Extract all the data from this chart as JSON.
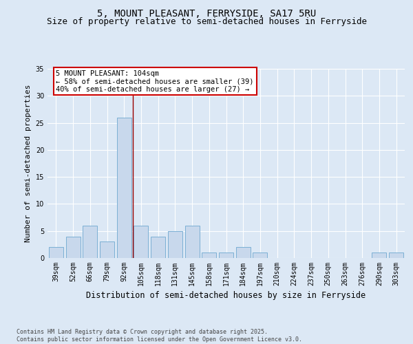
{
  "title_line1": "5, MOUNT PLEASANT, FERRYSIDE, SA17 5RU",
  "title_line2": "Size of property relative to semi-detached houses in Ferryside",
  "xlabel": "Distribution of semi-detached houses by size in Ferryside",
  "ylabel": "Number of semi-detached properties",
  "categories": [
    "39sqm",
    "52sqm",
    "66sqm",
    "79sqm",
    "92sqm",
    "105sqm",
    "118sqm",
    "131sqm",
    "145sqm",
    "158sqm",
    "171sqm",
    "184sqm",
    "197sqm",
    "210sqm",
    "224sqm",
    "237sqm",
    "250sqm",
    "263sqm",
    "276sqm",
    "290sqm",
    "303sqm"
  ],
  "values": [
    2,
    4,
    6,
    3,
    26,
    6,
    4,
    5,
    6,
    1,
    1,
    2,
    1,
    0,
    0,
    0,
    0,
    0,
    0,
    1,
    1
  ],
  "bar_color": "#c8d8ec",
  "bar_edge_color": "#7bafd4",
  "highlight_index": 4,
  "highlight_line_color": "#990000",
  "annotation_text": "5 MOUNT PLEASANT: 104sqm\n← 58% of semi-detached houses are smaller (39)\n40% of semi-detached houses are larger (27) →",
  "annotation_box_facecolor": "#ffffff",
  "annotation_box_edgecolor": "#cc0000",
  "ylim": [
    0,
    35
  ],
  "yticks": [
    0,
    5,
    10,
    15,
    20,
    25,
    30,
    35
  ],
  "footer_text": "Contains HM Land Registry data © Crown copyright and database right 2025.\nContains public sector information licensed under the Open Government Licence v3.0.",
  "bg_color": "#dce8f5",
  "plot_bg_color": "#dce8f5",
  "grid_color": "#ffffff",
  "title_fontsize": 10,
  "subtitle_fontsize": 9,
  "tick_fontsize": 7,
  "ylabel_fontsize": 8,
  "xlabel_fontsize": 8.5,
  "annotation_fontsize": 7.5,
  "footer_fontsize": 6
}
